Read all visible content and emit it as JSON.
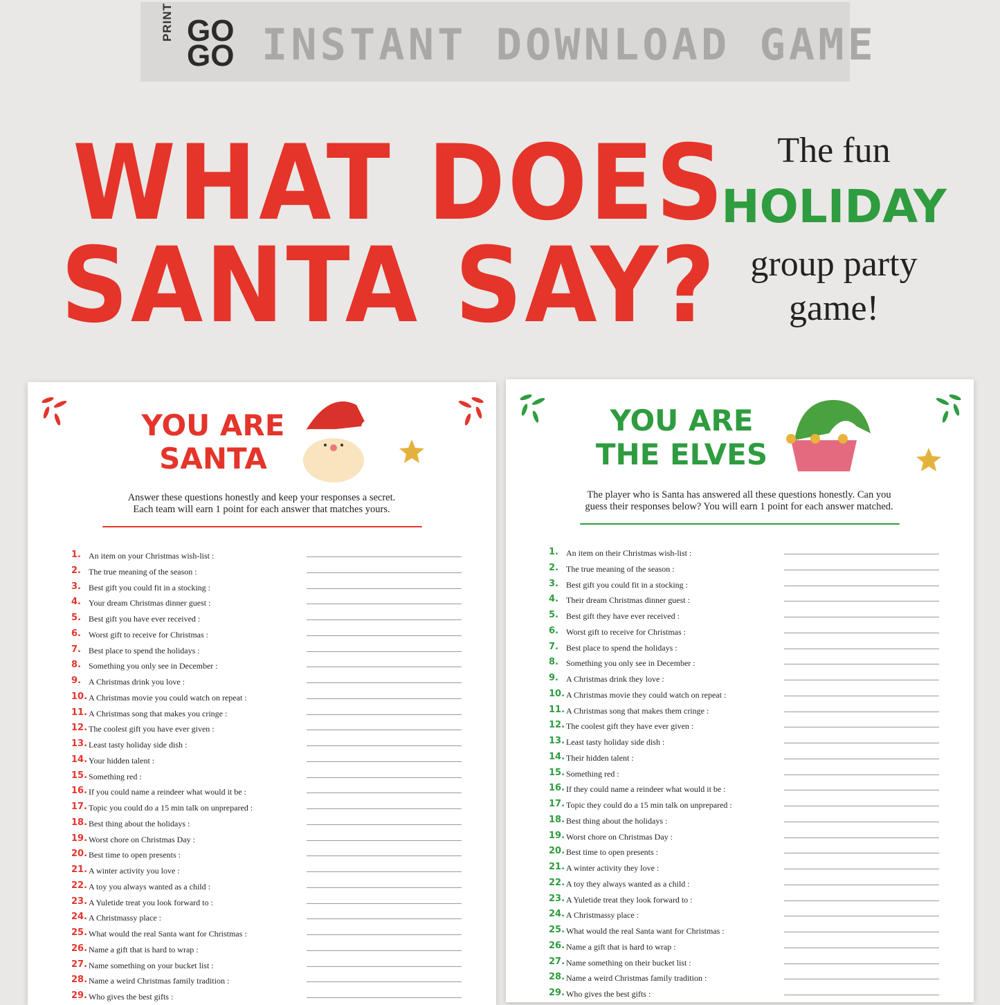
{
  "banner": {
    "logo_side": "PRINT",
    "logo_lines": [
      "GO",
      "GO"
    ],
    "text": "INSTANT DOWNLOAD GAME"
  },
  "title": {
    "lines": [
      "WHAT DOES",
      "SANTA SAY?"
    ]
  },
  "tagline": {
    "lines": [
      "The fun",
      "HOLIDAY",
      "group party",
      "game!"
    ]
  },
  "sheets": [
    {
      "heading": [
        "YOU ARE",
        "SANTA"
      ],
      "intro": [
        "Answer these questions honestly and keep your responses a secret.",
        "Each team will earn 1 point for each answer that matches yours."
      ],
      "questions": [
        {
          "number": "1.",
          "text": "An item on your Christmas wish-list :"
        },
        {
          "number": "2.",
          "text": "The true meaning of the season :"
        },
        {
          "number": "3.",
          "text": "Best gift you could fit in a stocking :"
        },
        {
          "number": "4.",
          "text": "Your dream Christmas dinner guest :"
        },
        {
          "number": "5.",
          "text": "Best gift you have ever received :"
        },
        {
          "number": "6.",
          "text": "Worst gift to receive for Christmas :"
        },
        {
          "number": "7.",
          "text": "Best place to spend the holidays :"
        },
        {
          "number": "8.",
          "text": "Something you only see in December :"
        },
        {
          "number": "9.",
          "text": "A Christmas drink you love :"
        },
        {
          "number": "10.",
          "text": "A Christmas movie you could watch on repeat :"
        },
        {
          "number": "11.",
          "text": "A Christmas song that makes you cringe :"
        },
        {
          "number": "12.",
          "text": "The coolest gift you have ever given :"
        },
        {
          "number": "13.",
          "text": "Least tasty holiday side dish :"
        },
        {
          "number": "14.",
          "text": "Your hidden talent :"
        },
        {
          "number": "15.",
          "text": "Something red :"
        },
        {
          "number": "16.",
          "text": "If you could name a reindeer what would it be :"
        },
        {
          "number": "17.",
          "text": "Topic you could do a 15 min talk on unprepared :"
        },
        {
          "number": "18.",
          "text": "Best thing about the holidays :"
        },
        {
          "number": "19.",
          "text": "Worst chore on Christmas Day :"
        },
        {
          "number": "20.",
          "text": "Best time to open presents :"
        },
        {
          "number": "21.",
          "text": "A winter activity you love :"
        },
        {
          "number": "22.",
          "text": "A toy you always wanted as a child :"
        },
        {
          "number": "23.",
          "text": "A Yuletide treat you look forward to :"
        },
        {
          "number": "24.",
          "text": "A Christmassy place :"
        },
        {
          "number": "25.",
          "text": "What would the real Santa want for Christmas :"
        },
        {
          "number": "26.",
          "text": "Name a gift that is hard to wrap :"
        },
        {
          "number": "27.",
          "text": "Name something on your bucket list :"
        },
        {
          "number": "28.",
          "text": "Name a weird Christmas family tradition :"
        },
        {
          "number": "29.",
          "text": "Who gives the best gifts :"
        }
      ]
    },
    {
      "heading": [
        "YOU ARE",
        "THE ELVES"
      ],
      "intro": [
        "The player who is Santa has answered all these questions honestly. Can you",
        "guess their responses below? You will earn 1 point for each answer matched."
      ],
      "questions": [
        {
          "number": "1.",
          "text": "An item on their Christmas wish-list :"
        },
        {
          "number": "2.",
          "text": "The true meaning of the season :"
        },
        {
          "number": "3.",
          "text": "Best gift you could fit in a stocking :"
        },
        {
          "number": "4.",
          "text": "Their dream Christmas dinner guest :"
        },
        {
          "number": "5.",
          "text": "Best gift they have ever received :"
        },
        {
          "number": "6.",
          "text": "Worst gift to receive for Christmas :"
        },
        {
          "number": "7.",
          "text": "Best place to spend the holidays :"
        },
        {
          "number": "8.",
          "text": "Something you only see in December :"
        },
        {
          "number": "9.",
          "text": "A Christmas drink they love :"
        },
        {
          "number": "10.",
          "text": "A Christmas movie they could watch on repeat :"
        },
        {
          "number": "11.",
          "text": "A Christmas song that makes them cringe :"
        },
        {
          "number": "12.",
          "text": "The coolest gift they have ever given :"
        },
        {
          "number": "13.",
          "text": "Least tasty holiday side dish :"
        },
        {
          "number": "14.",
          "text": "Their hidden talent :"
        },
        {
          "number": "15.",
          "text": "Something red :"
        },
        {
          "number": "16.",
          "text": "If they could name a reindeer what would it be :"
        },
        {
          "number": "17.",
          "text": "Topic they could do a 15 min talk on unprepared :"
        },
        {
          "number": "18.",
          "text": "Best thing about the holidays :"
        },
        {
          "number": "19.",
          "text": "Worst chore on Christmas Day :"
        },
        {
          "number": "20.",
          "text": "Best time to open presents :"
        },
        {
          "number": "21.",
          "text": "A winter activity they love :"
        },
        {
          "number": "22.",
          "text": "A toy they always wanted as a child :"
        },
        {
          "number": "23.",
          "text": "A Yuletide treat they look forward to :"
        },
        {
          "number": "24.",
          "text": "A Christmassy place :"
        },
        {
          "number": "25.",
          "text": "What would the real Santa want for Christmas :"
        },
        {
          "number": "26.",
          "text": "Name a gift that is hard to wrap :"
        },
        {
          "number": "27.",
          "text": "Name something on their bucket list :"
        },
        {
          "number": "28.",
          "text": "Name a weird Christmas family tradition :"
        },
        {
          "number": "29.",
          "text": "Who gives the best gifts :"
        }
      ]
    }
  ]
}
